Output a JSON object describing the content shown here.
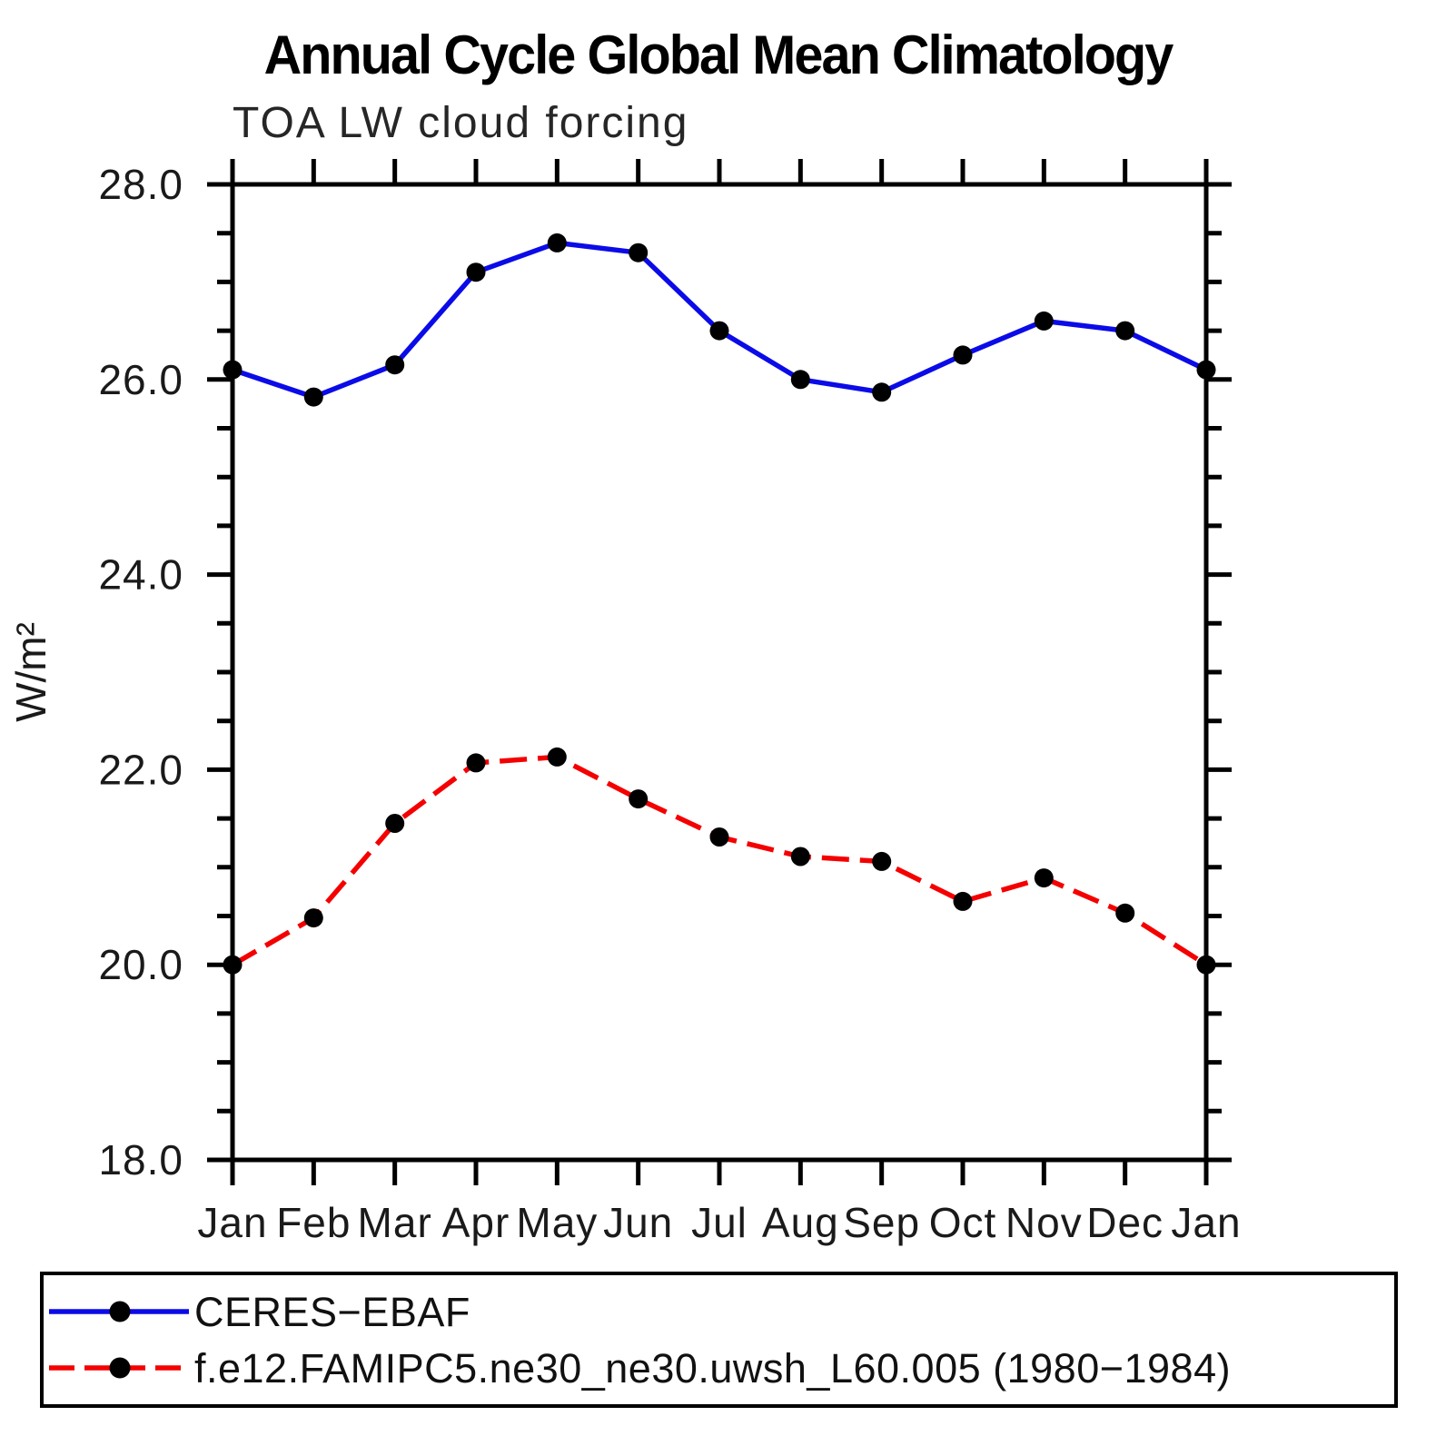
{
  "page": {
    "background": "#ffffff"
  },
  "chart_data": {
    "type": "line",
    "title": "Annual Cycle Global Mean Climatology",
    "subtitle": "TOA LW cloud forcing",
    "ylabel": "W/m²",
    "xlabel": "",
    "categories": [
      "Jan",
      "Feb",
      "Mar",
      "Apr",
      "May",
      "Jun",
      "Jul",
      "Aug",
      "Sep",
      "Oct",
      "Nov",
      "Dec",
      "Jan"
    ],
    "ylim": [
      18.0,
      28.0
    ],
    "ytick_major": [
      18.0,
      20.0,
      22.0,
      24.0,
      26.0,
      28.0
    ],
    "ytick_labels": [
      "18.0",
      "20.0",
      "22.0",
      "24.0",
      "26.0",
      "28.0"
    ],
    "ytick_minor_step": 0.5,
    "grid": false,
    "legend_position": "bottom-box",
    "axis_color": "#000000",
    "marker_color": "#000000",
    "series": [
      {
        "name": "CERES−EBAF",
        "color": "#0b0be8",
        "line_style": "solid",
        "values": [
          26.1,
          25.82,
          26.15,
          27.1,
          27.4,
          27.3,
          26.5,
          26.0,
          25.87,
          26.25,
          26.6,
          26.5,
          26.1
        ]
      },
      {
        "name": "f.e12.FAMIPC5.ne30_ne30.uwsh_L60.005 (1980−1984)",
        "color": "#f40000",
        "line_style": "dashed",
        "values": [
          20.0,
          20.48,
          21.45,
          22.07,
          22.13,
          21.7,
          21.31,
          21.11,
          21.06,
          20.65,
          20.89,
          20.53,
          20.0
        ]
      }
    ]
  }
}
